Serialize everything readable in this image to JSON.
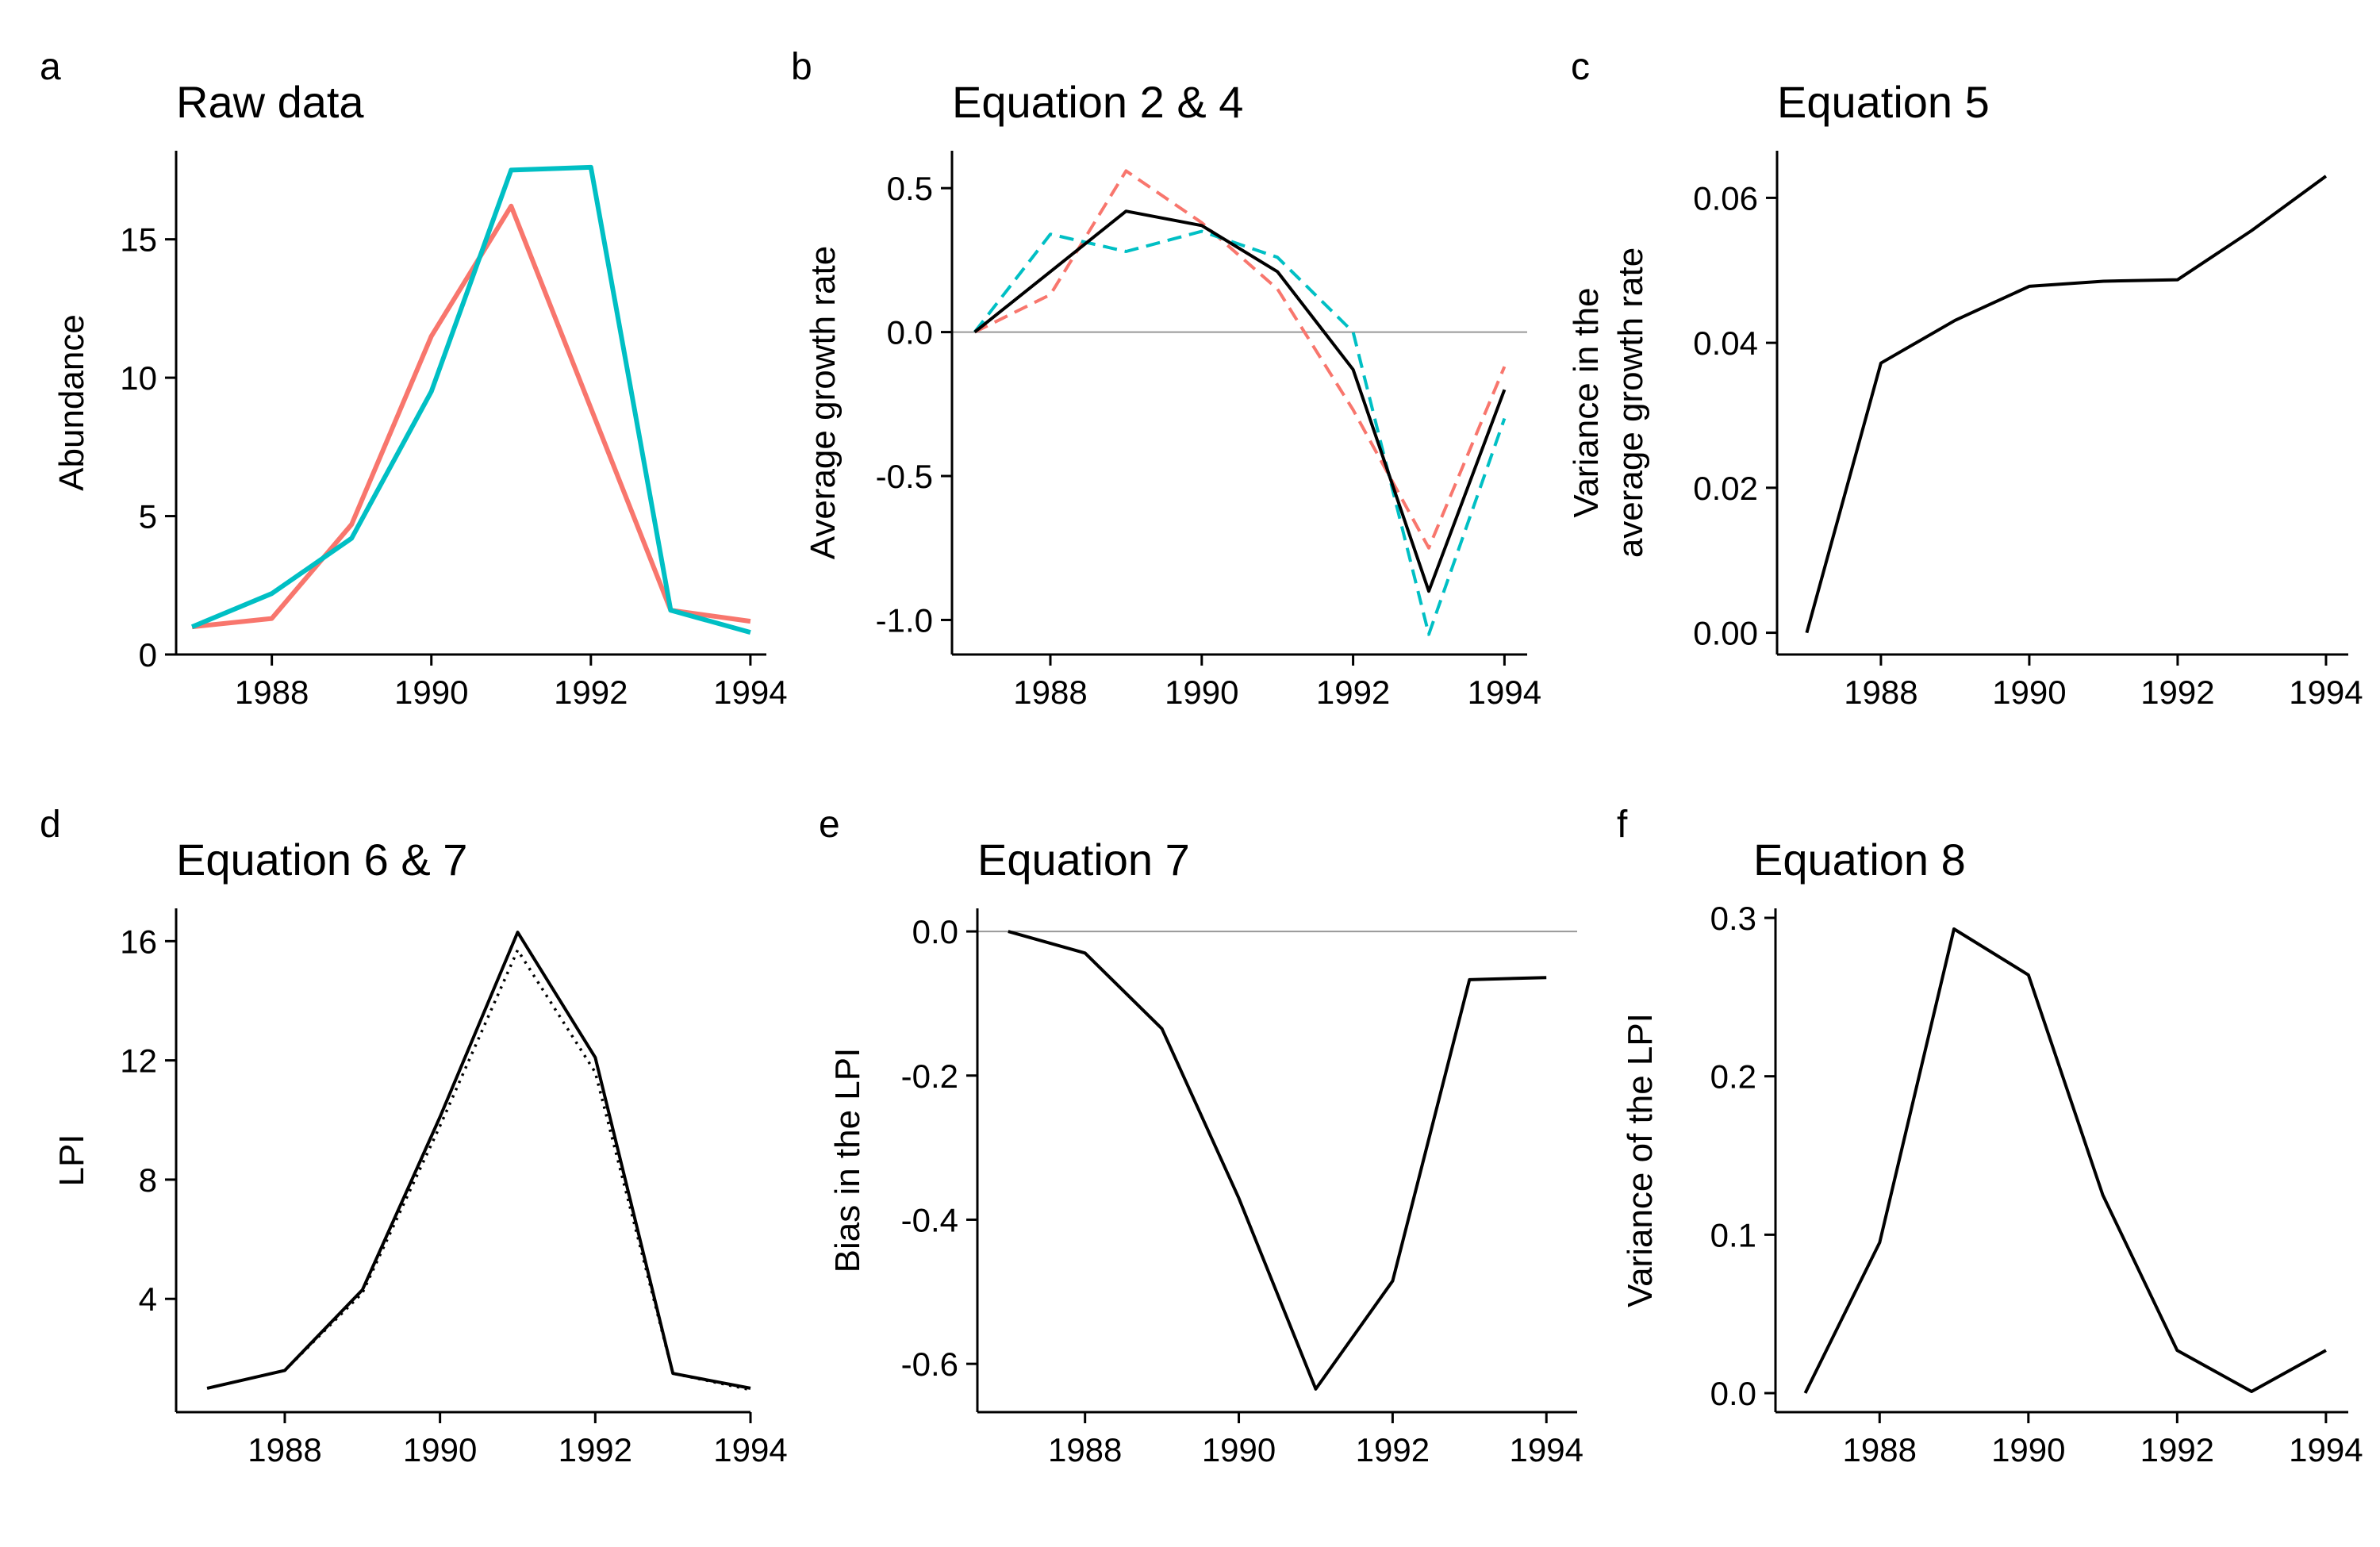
{
  "chart_data": [
    {
      "letter": "a",
      "title": "Raw data",
      "type": "line",
      "xlabel": "",
      "ylabel": [
        "Abundance"
      ],
      "xlim": [
        1986.8,
        1994.2
      ],
      "ylim": [
        0,
        18.2
      ],
      "xticks": [
        1988,
        1990,
        1992,
        1994
      ],
      "yticks": [
        0,
        5,
        10,
        15
      ],
      "ytick_labels": [
        "0",
        "5",
        "10",
        "15"
      ],
      "grid": false,
      "ref_line": null,
      "x": [
        1987,
        1988,
        1989,
        1990,
        1991,
        1992,
        1993,
        1994
      ],
      "series": [
        {
          "values": [
            1.0,
            1.3,
            4.7,
            11.5,
            16.2,
            8.9,
            1.6,
            1.2
          ],
          "color": "#F8766D",
          "dash": "solid"
        },
        {
          "values": [
            1.0,
            2.2,
            4.2,
            9.5,
            17.5,
            17.6,
            1.6,
            0.8
          ],
          "color": "#00BFC4",
          "dash": "solid"
        }
      ]
    },
    {
      "letter": "b",
      "title": "Equation 2 & 4",
      "type": "line",
      "xlabel": "",
      "ylabel": [
        "Average growth rate"
      ],
      "xlim": [
        1986.7,
        1994.3
      ],
      "ylim": [
        -1.12,
        0.63
      ],
      "xticks": [
        1988,
        1990,
        1992,
        1994
      ],
      "yticks": [
        -1.0,
        -0.5,
        0.0,
        0.5
      ],
      "ytick_labels": [
        "-1.0",
        "-0.5",
        "0.0",
        "0.5"
      ],
      "grid": false,
      "ref_line": 0,
      "x": [
        1987,
        1988,
        1989,
        1990,
        1991,
        1992,
        1993,
        1994
      ],
      "series": [
        {
          "values": [
            0.0,
            0.13,
            0.56,
            0.38,
            0.15,
            -0.27,
            -0.75,
            -0.12
          ],
          "color": "#F8766D",
          "dash": "dashed"
        },
        {
          "values": [
            0.0,
            0.34,
            0.28,
            0.35,
            0.26,
            0.0,
            -1.05,
            -0.3
          ],
          "color": "#00BFC4",
          "dash": "dashed"
        },
        {
          "values": [
            0.0,
            0.21,
            0.42,
            0.37,
            0.21,
            -0.13,
            -0.9,
            -0.2
          ],
          "color": "#000000",
          "dash": "solid"
        }
      ]
    },
    {
      "letter": "c",
      "title": "Equation 5",
      "type": "line",
      "xlabel": "",
      "ylabel": [
        "Variance in the",
        "average growth rate"
      ],
      "xlim": [
        1986.6,
        1994.3
      ],
      "ylim": [
        -0.003,
        0.0665
      ],
      "xticks": [
        1988,
        1990,
        1992,
        1994
      ],
      "yticks": [
        0.0,
        0.02,
        0.04,
        0.06
      ],
      "ytick_labels": [
        "0.00",
        "0.02",
        "0.04",
        "0.06"
      ],
      "grid": false,
      "ref_line": null,
      "x": [
        1987,
        1988,
        1989,
        1990,
        1991,
        1992,
        1993,
        1994
      ],
      "series": [
        {
          "values": [
            0.0,
            0.0372,
            0.0431,
            0.0478,
            0.0485,
            0.0487,
            0.0555,
            0.063
          ],
          "color": "#000000",
          "dash": "solid"
        }
      ]
    },
    {
      "letter": "d",
      "title": "Equation 6 & 7",
      "type": "line",
      "xlabel": "",
      "ylabel": [
        "LPI"
      ],
      "xlim": [
        1986.6,
        1994.0
      ],
      "ylim": [
        0.2,
        17.1
      ],
      "xticks": [
        1988,
        1990,
        1992,
        1994
      ],
      "yticks": [
        4,
        8,
        12,
        16
      ],
      "ytick_labels": [
        "4",
        "8",
        "12",
        "16"
      ],
      "grid": false,
      "ref_line": null,
      "x": [
        1987,
        1988,
        1989,
        1990,
        1991,
        1992,
        1993,
        1994
      ],
      "series": [
        {
          "values": [
            1.0,
            1.6,
            4.2,
            9.8,
            15.7,
            11.6,
            1.5,
            0.95
          ],
          "color": "#000000",
          "dash": "dotted"
        },
        {
          "values": [
            1.0,
            1.6,
            4.3,
            10.1,
            16.3,
            12.1,
            1.5,
            1.0
          ],
          "color": "#000000",
          "dash": "solid"
        }
      ]
    },
    {
      "letter": "e",
      "title": "Equation 7",
      "type": "line",
      "xlabel": "",
      "ylabel": [
        "Bias in the LPI"
      ],
      "xlim": [
        1986.6,
        1994.4
      ],
      "ylim": [
        -0.667,
        0.032
      ],
      "xticks": [
        1988,
        1990,
        1992,
        1994
      ],
      "yticks": [
        -0.6,
        -0.4,
        -0.2,
        0.0
      ],
      "ytick_labels": [
        "-0.6",
        "-0.4",
        "-0.2",
        "0.0"
      ],
      "grid": false,
      "ref_line": 0,
      "x": [
        1987,
        1988,
        1989,
        1990,
        1991,
        1992,
        1993,
        1994
      ],
      "series": [
        {
          "values": [
            0.0,
            -0.03,
            -0.135,
            -0.37,
            -0.635,
            -0.485,
            -0.067,
            -0.064
          ],
          "color": "#000000",
          "dash": "solid"
        }
      ]
    },
    {
      "letter": "f",
      "title": "Equation 8",
      "type": "line",
      "xlabel": "",
      "ylabel": [
        "Variance of the LPI"
      ],
      "xlim": [
        1986.6,
        1994.3
      ],
      "ylim": [
        -0.012,
        0.306
      ],
      "xticks": [
        1988,
        1990,
        1992,
        1994
      ],
      "yticks": [
        0.0,
        0.1,
        0.2,
        0.3
      ],
      "ytick_labels": [
        "0.0",
        "0.1",
        "0.2",
        "0.3"
      ],
      "grid": false,
      "ref_line": null,
      "x": [
        1987,
        1988,
        1989,
        1990,
        1991,
        1992,
        1993,
        1994
      ],
      "series": [
        {
          "values": [
            0.0,
            0.095,
            0.293,
            0.264,
            0.125,
            0.027,
            0.001,
            0.027
          ],
          "color": "#000000",
          "dash": "solid"
        }
      ]
    }
  ]
}
